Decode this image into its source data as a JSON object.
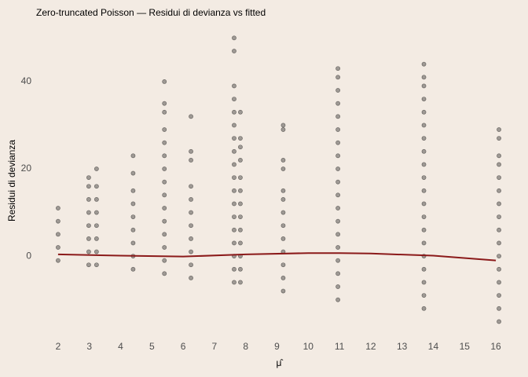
{
  "chart_data": {
    "type": "scatter",
    "title": "Zero-truncated Poisson — Residui di devianza vs fitted",
    "x_label": "μ̂",
    "y_label": "Residui di devianza",
    "color": "#000000",
    "x": [
      2,
      2,
      2,
      2,
      2,
      2.98,
      2.98,
      2.98,
      2.98,
      2.98,
      2.98,
      2.98,
      2.98,
      3.23,
      3.23,
      3.23,
      3.23,
      3.23,
      3.23,
      3.23,
      3.23,
      4.4,
      4.4,
      4.4,
      4.4,
      4.4,
      4.4,
      4.4,
      4.4,
      4.4,
      5.4,
      5.4,
      5.4,
      5.4,
      5.4,
      5.4,
      5.4,
      5.4,
      5.4,
      5.4,
      5.4,
      5.4,
      5.4,
      5.4,
      5.4,
      6.25,
      6.25,
      6.25,
      6.25,
      6.25,
      6.25,
      6.25,
      6.25,
      6.25,
      6.25,
      6.25,
      7.63,
      7.63,
      7.63,
      7.63,
      7.63,
      7.63,
      7.63,
      7.63,
      7.63,
      7.63,
      7.63,
      7.63,
      7.63,
      7.63,
      7.63,
      7.63,
      7.63,
      7.63,
      7.83,
      7.83,
      7.83,
      7.83,
      7.83,
      7.83,
      7.83,
      7.83,
      7.83,
      7.83,
      7.83,
      7.83,
      7.83,
      9.2,
      9.2,
      9.2,
      9.2,
      9.2,
      9.2,
      9.2,
      9.2,
      9.2,
      9.2,
      9.2,
      9.2,
      9.2,
      10.95,
      10.95,
      10.95,
      10.95,
      10.95,
      10.95,
      10.95,
      10.95,
      10.95,
      10.95,
      10.95,
      10.95,
      10.95,
      10.95,
      10.95,
      10.95,
      10.95,
      10.95,
      10.95,
      13.7,
      13.7,
      13.7,
      13.7,
      13.7,
      13.7,
      13.7,
      13.7,
      13.7,
      13.7,
      13.7,
      13.7,
      13.7,
      13.7,
      13.7,
      13.7,
      13.7,
      13.7,
      13.7,
      13.7,
      16.1,
      16.1,
      16.1,
      16.1,
      16.1,
      16.1,
      16.1,
      16.1,
      16.1,
      16.1,
      16.1,
      16.1,
      16.1,
      16.1,
      16.1,
      16.1
    ],
    "y": [
      -1,
      2,
      5,
      8,
      11,
      -2,
      1,
      4,
      7,
      10,
      13,
      16,
      18,
      -2,
      1,
      4,
      7,
      10,
      13,
      16,
      20,
      -3,
      0,
      3,
      6,
      9,
      12,
      15,
      19,
      23,
      -4,
      -1,
      2,
      5,
      8,
      11,
      14,
      17,
      20,
      23,
      26,
      29,
      33,
      35,
      40,
      -5,
      -2,
      1,
      4,
      7,
      10,
      13,
      16,
      22,
      24,
      32,
      -6,
      -3,
      0,
      3,
      6,
      9,
      12,
      15,
      18,
      21,
      24,
      27,
      30,
      33,
      36,
      39,
      47,
      50,
      -6,
      -3,
      0,
      3,
      6,
      9,
      12,
      15,
      18,
      22,
      25,
      27,
      33,
      -8,
      -5,
      -2,
      1,
      4,
      7,
      10,
      13,
      15,
      20,
      22,
      29,
      30,
      -10,
      -7,
      -4,
      -1,
      2,
      5,
      8,
      11,
      14,
      17,
      20,
      23,
      26,
      29,
      32,
      35,
      38,
      41,
      43,
      -12,
      -9,
      -6,
      -3,
      0,
      3,
      6,
      9,
      12,
      15,
      18,
      21,
      24,
      27,
      30,
      33,
      36,
      39,
      41,
      44,
      -15,
      -12,
      -9,
      -6,
      -3,
      0,
      3,
      6,
      9,
      12,
      15,
      18,
      21,
      23,
      27,
      29
    ],
    "smooth": {
      "color": "#8b1a1a",
      "x": [
        2,
        4,
        6,
        8,
        10,
        11,
        12,
        14,
        16
      ],
      "y": [
        0.4,
        0.1,
        -0.1,
        0.4,
        0.7,
        0.7,
        0.6,
        0.1,
        -1
      ]
    },
    "xlim": [
      1.6,
      16.3
    ],
    "ylim": [
      -18.7,
      51.5
    ],
    "xticks": [
      2,
      3,
      4,
      5,
      6,
      7,
      8,
      9,
      10,
      11,
      12,
      13,
      14,
      15,
      16
    ],
    "yticks": [
      0,
      20,
      40
    ],
    "grid": false
  }
}
